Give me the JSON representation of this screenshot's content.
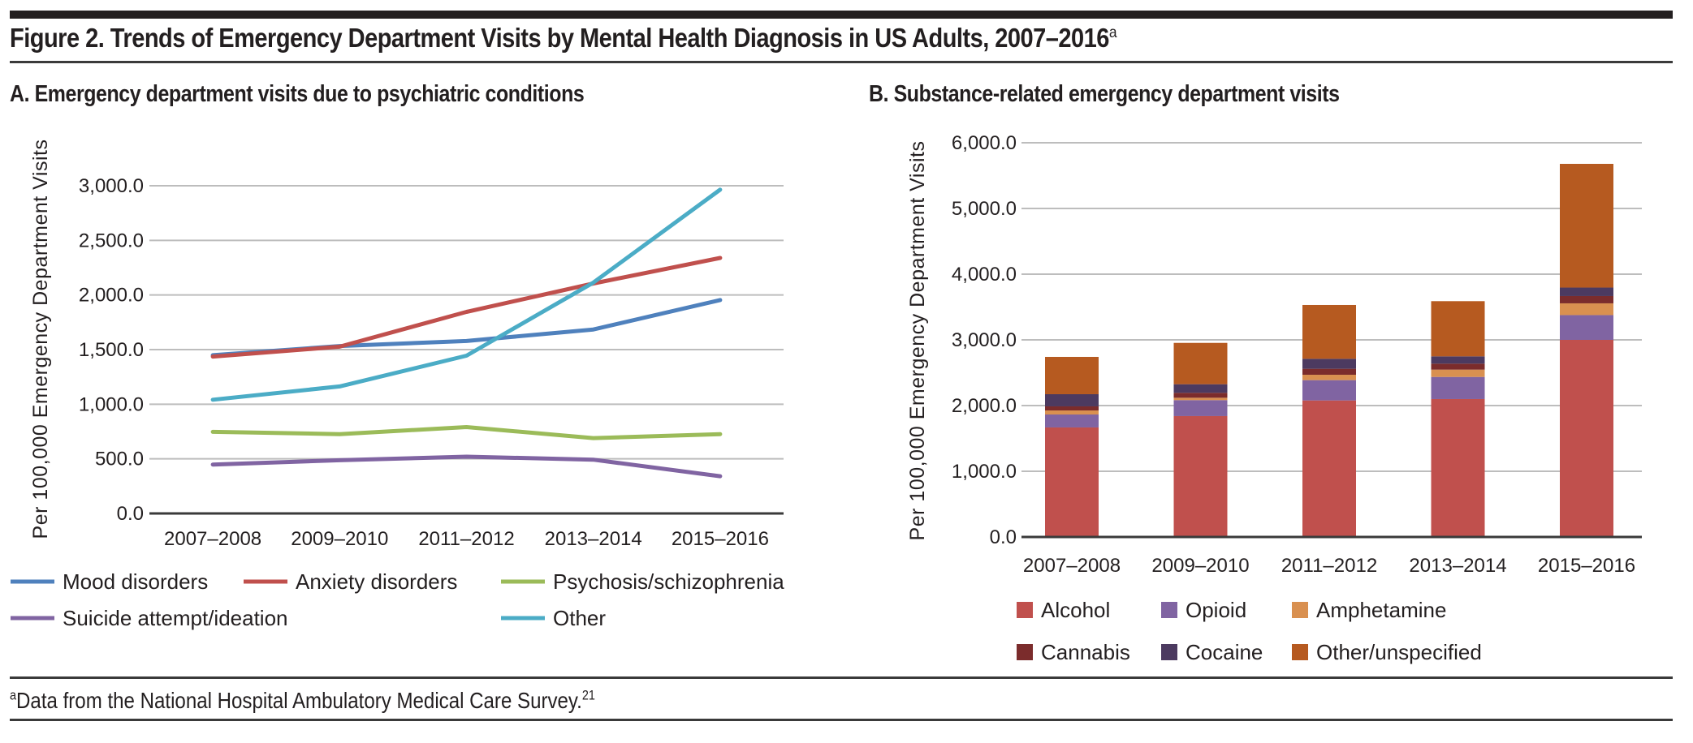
{
  "figure": {
    "title": "Figure 2. Trends of Emergency Department Visits by Mental Health Diagnosis in US Adults, 2007–2016",
    "title_superscript": "a",
    "footnote_marker": "a",
    "footnote": "Data from the National Hospital Ambulatory Medical Care Survey.",
    "footnote_ref": "21"
  },
  "chart_data": [
    {
      "type": "line",
      "title": "A. Emergency department visits due to psychiatric conditions",
      "xlabel": "",
      "ylabel": "Per 100,000 Emergency Department Visits",
      "categories": [
        "2007–2008",
        "2009–2010",
        "2011–2012",
        "2013–2014",
        "2015–2016"
      ],
      "ylim": [
        0,
        3000
      ],
      "yticks": [
        0,
        500,
        1000,
        1500,
        2000,
        2500,
        3000
      ],
      "ytick_labels": [
        "0.0",
        "500.0",
        "1,000.0",
        "1,500.0",
        "2,000.0",
        "2,500.0",
        "3,000.0"
      ],
      "grid": true,
      "legend_position": "bottom",
      "series": [
        {
          "name": "Mood disorders",
          "color": "#4f81bd",
          "values": [
            1449,
            1533,
            1579,
            1684,
            1954
          ]
        },
        {
          "name": "Anxiety disorders",
          "color": "#c0504d",
          "values": [
            1436,
            1527,
            1845,
            2105,
            2339
          ]
        },
        {
          "name": "Psychosis/schizophrenia",
          "color": "#9bbb59",
          "values": [
            747,
            726,
            791,
            690,
            726
          ]
        },
        {
          "name": "Suicide attempt/ideation",
          "color": "#8064a2",
          "values": [
            448,
            487,
            520,
            492,
            341
          ]
        },
        {
          "name": "Other",
          "color": "#4bacc6",
          "values": [
            1041,
            1163,
            1444,
            2113,
            2964
          ]
        }
      ]
    },
    {
      "type": "bar",
      "stacked": true,
      "title": "B. Substance-related emergency department visits",
      "xlabel": "",
      "ylabel": "Per 100,000 Emergency Department Visits",
      "categories": [
        "2007–2008",
        "2009–2010",
        "2011–2012",
        "2013–2014",
        "2015–2016"
      ],
      "ylim": [
        0,
        6000
      ],
      "yticks": [
        0,
        1000,
        2000,
        3000,
        4000,
        5000,
        6000
      ],
      "ytick_labels": [
        "0.0",
        "1,000.0",
        "2,000.0",
        "3,000.0",
        "4,000.0",
        "5,000.0",
        "6,000.0"
      ],
      "grid": true,
      "legend_position": "bottom",
      "series": [
        {
          "name": "Alcohol",
          "color": "#c0504d",
          "values": [
            1667,
            1840,
            2078,
            2099,
            3000
          ]
        },
        {
          "name": "Opioid",
          "color": "#8064a2",
          "values": [
            197,
            243,
            309,
            337,
            377
          ]
        },
        {
          "name": "Amphetamine",
          "color": "#d99050",
          "values": [
            62,
            36,
            82,
            111,
            179
          ]
        },
        {
          "name": "Cannabis",
          "color": "#7b2c2c",
          "values": [
            62,
            75,
            91,
            91,
            111
          ]
        },
        {
          "name": "Cocaine",
          "color": "#4c3a60",
          "values": [
            185,
            131,
            152,
            111,
            129
          ]
        },
        {
          "name": "Other/unspecified",
          "color": "#b65a20",
          "values": [
            568,
            629,
            819,
            840,
            1883
          ]
        }
      ]
    }
  ]
}
